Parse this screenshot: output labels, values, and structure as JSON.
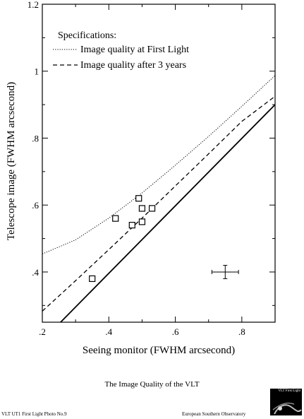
{
  "chart_data": {
    "type": "scatter",
    "xlabel": "Seeing monitor (FWHM arcsecond)",
    "ylabel": "Telescope image (FWHM arcsecond)",
    "xlim": [
      0.2,
      0.9
    ],
    "ylim": [
      0.25,
      1.2
    ],
    "x_ticks": [
      0.2,
      0.4,
      0.6,
      0.8
    ],
    "x_tick_labels": [
      ".2",
      ".4",
      ".6",
      ".8"
    ],
    "y_ticks": [
      0.4,
      0.6,
      0.8,
      1.0,
      1.2
    ],
    "y_tick_labels": [
      ".4",
      ".6",
      ".8",
      "1",
      "1.2"
    ],
    "legend_title": "Specifications:",
    "legend_position": "top-left",
    "grid": false,
    "series": [
      {
        "name": "Image quality at First Light",
        "style": "dotted",
        "x": [
          0.2,
          0.3,
          0.4,
          0.5,
          0.6,
          0.7,
          0.8,
          0.9
        ],
        "y": [
          0.454,
          0.496,
          0.561,
          0.636,
          0.719,
          0.805,
          0.895,
          0.987
        ]
      },
      {
        "name": "Image quality after 3 years",
        "style": "dashed",
        "x": [
          0.2,
          0.3,
          0.4,
          0.5,
          0.6,
          0.7,
          0.8,
          0.9
        ],
        "y": [
          0.283,
          0.374,
          0.467,
          0.561,
          0.657,
          0.753,
          0.85,
          0.925
        ]
      },
      {
        "name": "",
        "style": "solid",
        "x": [
          0.255,
          0.9
        ],
        "y": [
          0.25,
          0.9
        ]
      }
    ],
    "points": {
      "marker": "square",
      "x": [
        0.35,
        0.42,
        0.47,
        0.49,
        0.5,
        0.5,
        0.53
      ],
      "y": [
        0.38,
        0.56,
        0.54,
        0.62,
        0.59,
        0.55,
        0.59
      ]
    },
    "error_bar": {
      "x": 0.75,
      "y": 0.4,
      "x_err": 0.04,
      "y_err": 0.02
    }
  },
  "caption": "The Image Quality of the VLT",
  "footer_left": "VLT UT1 First Light Photo No.9",
  "footer_right": "European Southern Observatory",
  "logo_text": "VLT First Light"
}
